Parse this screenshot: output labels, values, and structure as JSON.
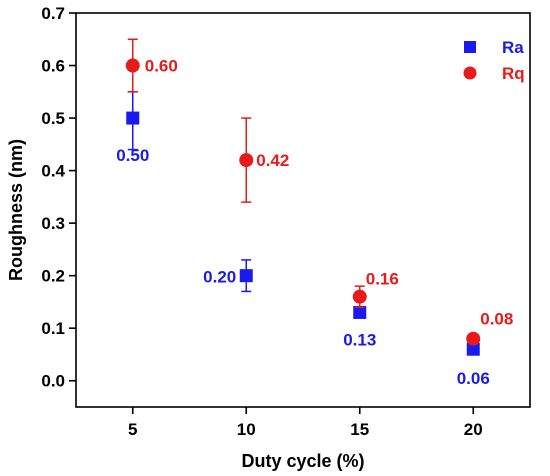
{
  "chart_data": {
    "type": "scatter",
    "xlabel": "Duty cycle (%)",
    "ylabel": "Roughness (nm)",
    "xlim": [
      2.5,
      22.5
    ],
    "ylim": [
      -0.05,
      0.7
    ],
    "x_ticks": [
      "5",
      "10",
      "15",
      "20"
    ],
    "y_ticks": [
      "0.0",
      "0.1",
      "0.2",
      "0.3",
      "0.4",
      "0.5",
      "0.6",
      "0.7"
    ],
    "grid": false,
    "legend_position": "top-right",
    "series": [
      {
        "name": "Ra",
        "marker": "square",
        "color": "#1a1aee",
        "x": [
          5,
          10,
          15,
          20
        ],
        "y": [
          0.5,
          0.2,
          0.13,
          0.06
        ],
        "err_low": [
          0.44,
          0.17,
          0.13,
          0.06
        ],
        "err_high": [
          0.55,
          0.23,
          0.13,
          0.06
        ],
        "labels": [
          "0.50",
          "0.20",
          "0.13",
          "0.06"
        ]
      },
      {
        "name": "Rq",
        "marker": "circle",
        "color": "#e81a1a",
        "x": [
          5,
          10,
          15,
          20
        ],
        "y": [
          0.6,
          0.42,
          0.16,
          0.08
        ],
        "err_low": [
          0.55,
          0.34,
          0.14,
          0.08
        ],
        "err_high": [
          0.65,
          0.5,
          0.18,
          0.08
        ],
        "labels": [
          "0.60",
          "0.42",
          "0.16",
          "0.08"
        ]
      }
    ]
  }
}
